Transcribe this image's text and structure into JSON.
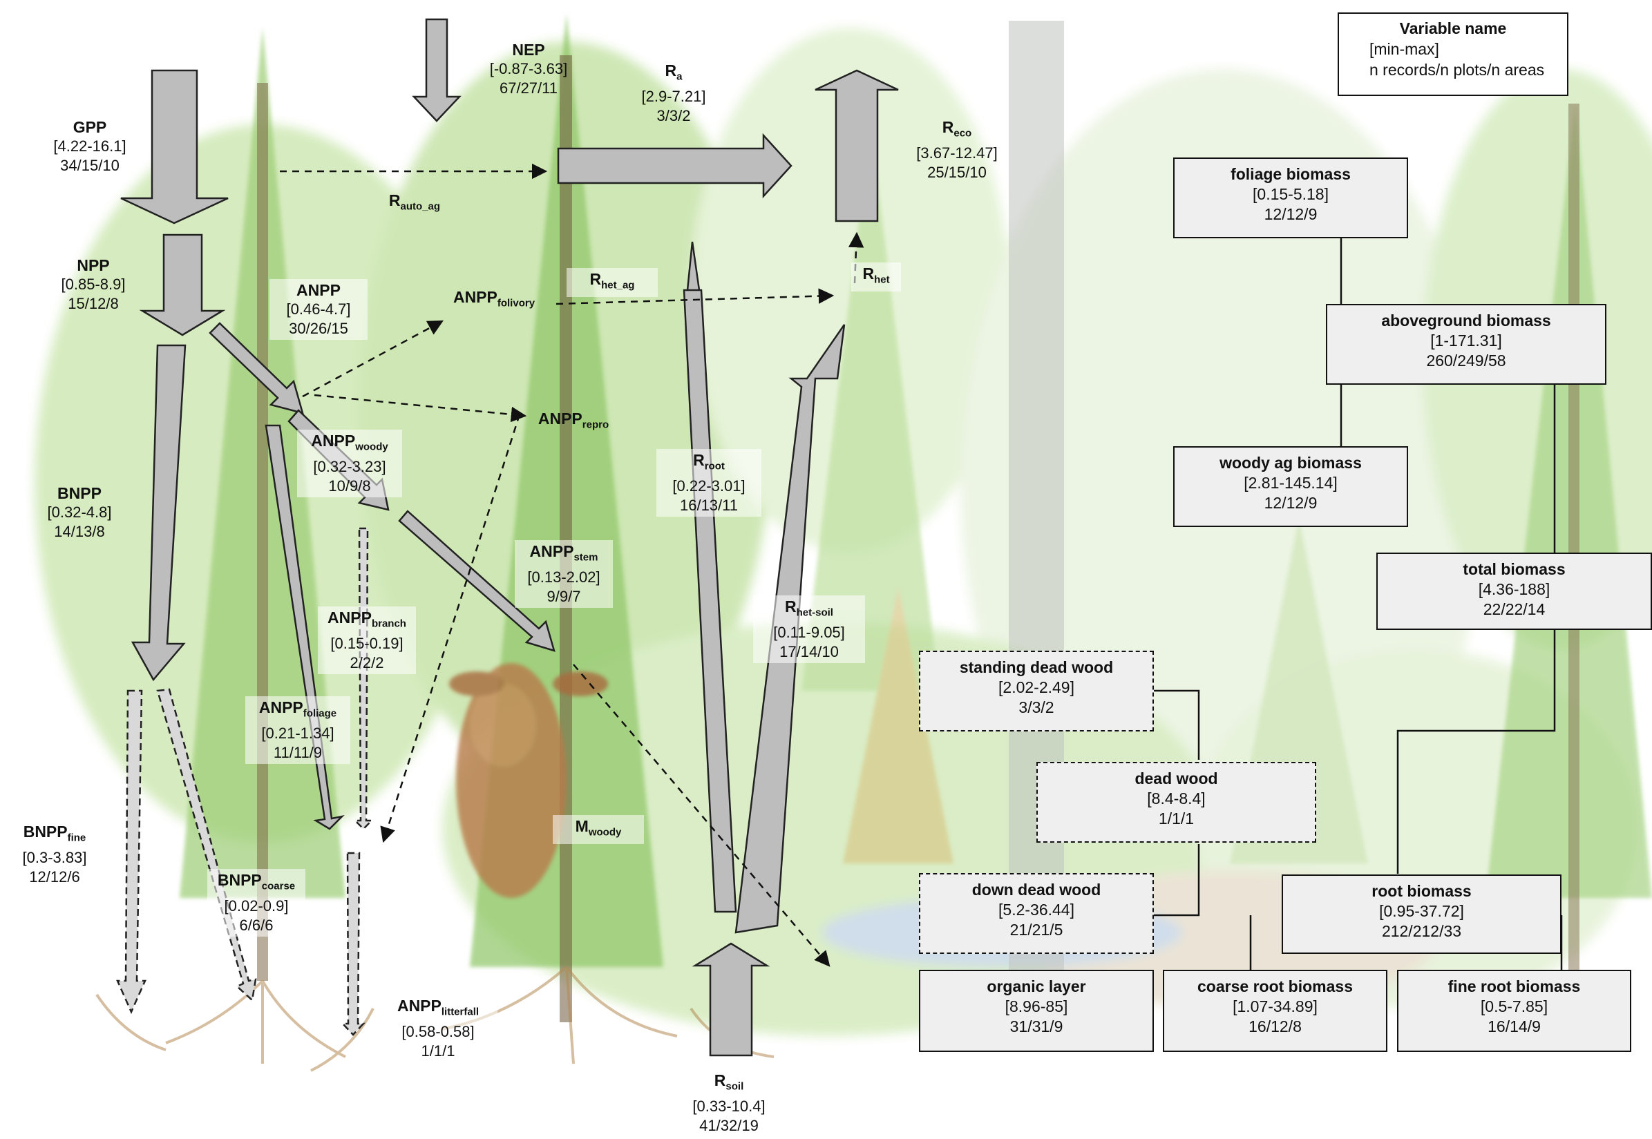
{
  "legend": {
    "title": "Variable name",
    "line1": "[min-max]",
    "line2": "n records/n plots/n areas"
  },
  "flux_labels": {
    "gpp": {
      "name": "GPP",
      "range": "[4.22-16.1]",
      "counts": "34/15/10"
    },
    "nep": {
      "name": "NEP",
      "range": "[-0.87-3.63]",
      "counts": "67/27/11"
    },
    "ra": {
      "name": "R",
      "sub": "a",
      "range": "[2.9-7.21]",
      "counts": "3/3/2"
    },
    "reco": {
      "name": "R",
      "sub": "eco",
      "range": "[3.67-12.47]",
      "counts": "25/15/10"
    },
    "rauto_ag": {
      "name": "R",
      "sub": "auto_ag"
    },
    "npp": {
      "name": "NPP",
      "range": "[0.85-8.9]",
      "counts": "15/12/8"
    },
    "anpp": {
      "name": "ANPP",
      "range": "[0.46-4.7]",
      "counts": "30/26/15"
    },
    "anpp_folivory": {
      "name": "ANPP",
      "sub": "folivory"
    },
    "rhet_ag": {
      "name": "R",
      "sub": "het_ag"
    },
    "rhet": {
      "name": "R",
      "sub": "het"
    },
    "anpp_repro": {
      "name": "ANPP",
      "sub": "repro"
    },
    "anpp_woody": {
      "name": "ANPP",
      "sub": "woody",
      "range": "[0.32-3.23]",
      "counts": "10/9/8"
    },
    "bnpp": {
      "name": "BNPP",
      "range": "[0.32-4.8]",
      "counts": "14/13/8"
    },
    "rroot": {
      "name": "R",
      "sub": "root",
      "range": "[0.22-3.01]",
      "counts": "16/13/11"
    },
    "anpp_stem": {
      "name": "ANPP",
      "sub": "stem",
      "range": "[0.13-2.02]",
      "counts": "9/9/7"
    },
    "anpp_branch": {
      "name": "ANPP",
      "sub": "branch",
      "range": "[0.15-0.19]",
      "counts": "2/2/2"
    },
    "rhet_soil": {
      "name": "R",
      "sub": "het-soil",
      "range": "[0.11-9.05]",
      "counts": "17/14/10"
    },
    "anpp_foliage": {
      "name": "ANPP",
      "sub": "foliage",
      "range": "[0.21-1.34]",
      "counts": "11/11/9"
    },
    "mwoody": {
      "name": "M",
      "sub": "woody"
    },
    "bnpp_fine": {
      "name": "BNPP",
      "sub": "fine",
      "range": "[0.3-3.83]",
      "counts": "12/12/6"
    },
    "bnpp_coarse": {
      "name": "BNPP",
      "sub": "coarse",
      "range": "[0.02-0.9]",
      "counts": "6/6/6"
    },
    "anpp_litterfall": {
      "name": "ANPP",
      "sub": "litterfall",
      "range": "[0.58-0.58]",
      "counts": "1/1/1"
    },
    "rsoil": {
      "name": "R",
      "sub": "soil",
      "range": "[0.33-10.4]",
      "counts": "41/32/19"
    }
  },
  "stock_boxes": {
    "foliage_biomass": {
      "name": "foliage biomass",
      "range": "[0.15-5.18]",
      "counts": "12/12/9"
    },
    "aboveground_biomass": {
      "name": "aboveground biomass",
      "range": "[1-171.31]",
      "counts": "260/249/58"
    },
    "woody_ag_biomass": {
      "name": "woody ag biomass",
      "range": "[2.81-145.14]",
      "counts": "12/12/9"
    },
    "total_biomass": {
      "name": "total biomass",
      "range": "[4.36-188]",
      "counts": "22/22/14"
    },
    "standing_dead_wood": {
      "name": "standing dead wood",
      "range": "[2.02-2.49]",
      "counts": "3/3/2"
    },
    "dead_wood": {
      "name": "dead wood",
      "range": "[8.4-8.4]",
      "counts": "1/1/1"
    },
    "down_dead_wood": {
      "name": "down dead wood",
      "range": "[5.2-36.44]",
      "counts": "21/21/5"
    },
    "root_biomass": {
      "name": "root biomass",
      "range": "[0.95-37.72]",
      "counts": "212/212/33"
    },
    "organic_layer": {
      "name": "organic layer",
      "range": "[8.96-85]",
      "counts": "31/31/9"
    },
    "coarse_root_biomass": {
      "name": "coarse root biomass",
      "range": "[1.07-34.89]",
      "counts": "16/12/8"
    },
    "fine_root_biomass": {
      "name": "fine root biomass",
      "range": "[0.5-7.85]",
      "counts": "16/14/9"
    }
  },
  "colors": {
    "arrow_fill": "#bdbdbd",
    "arrow_stroke": "#222222",
    "box_fill": "#efefef",
    "forest_green": "#8cc46a"
  }
}
